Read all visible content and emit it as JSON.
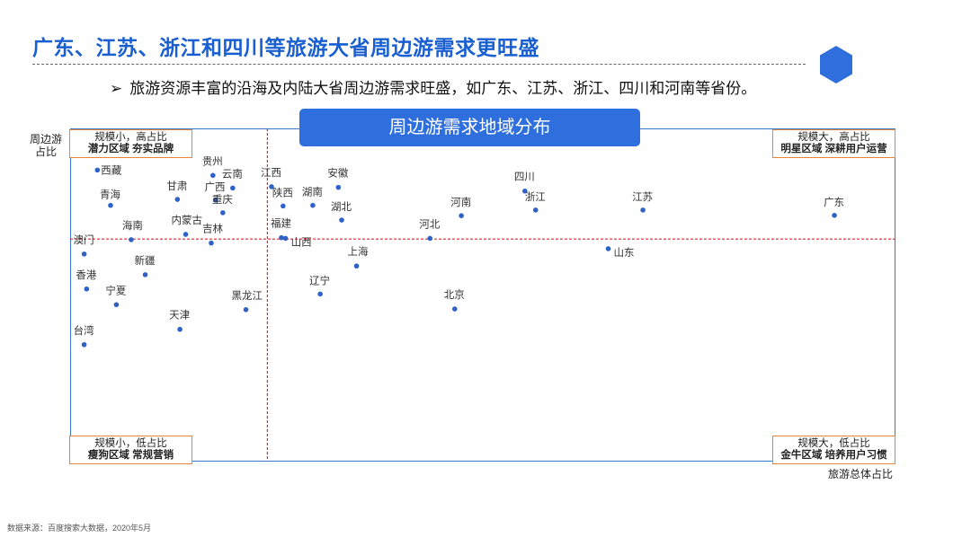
{
  "header": {
    "title": "广东、江苏、浙江和四川等旅游大省周边游需求更旺盛",
    "bullet": "旅游资源丰富的沿海及内陆大省周边游需求旺盛，如广东、江苏、浙江、四川和河南等省份。"
  },
  "source": "数据来源：百度搜索大数据，2020年5月",
  "chart_data": {
    "type": "scatter",
    "title": "周边游需求地域分布",
    "xlabel": "旅游总体占比",
    "ylabel": "周边游占比",
    "xlim": [
      0,
      100
    ],
    "ylim": [
      0,
      100
    ],
    "grid": false,
    "quadrant_labels": {
      "top_left": {
        "line1": "规模小，高占比",
        "line2": "潜力区域 夯实品牌"
      },
      "top_right": {
        "line1": "规模大，高占比",
        "line2": "明星区域 深耕用户运营"
      },
      "bottom_left": {
        "line1": "规模小，低占比",
        "line2": "瘦狗区域 常规营销"
      },
      "bottom_right": {
        "line1": "规模大，低占比",
        "line2": "金牛区域 培养用户习惯"
      }
    },
    "points": [
      {
        "name": "西藏",
        "x": 3.3,
        "y": 87.5
      },
      {
        "name": "青海",
        "x": 4.9,
        "y": 76.9
      },
      {
        "name": "海南",
        "x": 7.4,
        "y": 66.6
      },
      {
        "name": "澳门",
        "x": 1.7,
        "y": 62.3
      },
      {
        "name": "甘肃",
        "x": 13.0,
        "y": 78.7
      },
      {
        "name": "贵州",
        "x": 17.3,
        "y": 85.9
      },
      {
        "name": "云南",
        "x": 19.7,
        "y": 82.1
      },
      {
        "name": "广西",
        "x": 17.6,
        "y": 78.5
      },
      {
        "name": "重庆",
        "x": 18.5,
        "y": 74.7
      },
      {
        "name": "内蒙古",
        "x": 14.0,
        "y": 68.2
      },
      {
        "name": "吉林",
        "x": 17.1,
        "y": 65.6
      },
      {
        "name": "新疆",
        "x": 9.1,
        "y": 56.1
      },
      {
        "name": "香港",
        "x": 2.0,
        "y": 51.8
      },
      {
        "name": "宁夏",
        "x": 5.6,
        "y": 47.1
      },
      {
        "name": "天津",
        "x": 13.3,
        "y": 39.7
      },
      {
        "name": "台湾",
        "x": 1.7,
        "y": 35.1
      },
      {
        "name": "黑龙江",
        "x": 21.3,
        "y": 45.6
      },
      {
        "name": "江西",
        "x": 24.4,
        "y": 82.5
      },
      {
        "name": "陕西",
        "x": 25.8,
        "y": 76.7
      },
      {
        "name": "湖南",
        "x": 29.4,
        "y": 76.9
      },
      {
        "name": "安徽",
        "x": 32.5,
        "y": 82.3
      },
      {
        "name": "湖北",
        "x": 32.9,
        "y": 72.5
      },
      {
        "name": "福建",
        "x": 25.6,
        "y": 67.2
      },
      {
        "name": "山西",
        "x": 26.1,
        "y": 67.0
      },
      {
        "name": "上海",
        "x": 34.7,
        "y": 58.7
      },
      {
        "name": "辽宁",
        "x": 30.3,
        "y": 50.3
      },
      {
        "name": "河北",
        "x": 43.6,
        "y": 67.0
      },
      {
        "name": "河南",
        "x": 47.4,
        "y": 73.8
      },
      {
        "name": "北京",
        "x": 46.6,
        "y": 45.8
      },
      {
        "name": "四川",
        "x": 55.1,
        "y": 81.2
      },
      {
        "name": "浙江",
        "x": 56.4,
        "y": 75.5
      },
      {
        "name": "江苏",
        "x": 69.4,
        "y": 75.5
      },
      {
        "name": "山东",
        "x": 65.2,
        "y": 63.9
      },
      {
        "name": "广东",
        "x": 92.6,
        "y": 73.9
      }
    ],
    "dividers": {
      "x": 23.9,
      "y": 66.8
    },
    "colors": {
      "point": "#2e62c9",
      "divider": "#e0262a",
      "frame": "#3a78c8",
      "quad_border": "#e8833a"
    }
  }
}
